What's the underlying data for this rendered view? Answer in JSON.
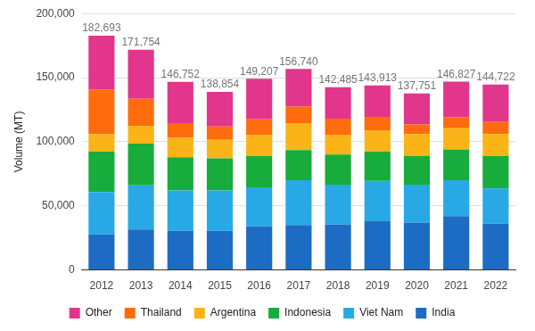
{
  "chart_data": {
    "type": "bar",
    "stacked": true,
    "y_label": "Volume (MT)",
    "categories": [
      "2012",
      "2013",
      "2014",
      "2015",
      "2016",
      "2017",
      "2018",
      "2019",
      "2020",
      "2021",
      "2022"
    ],
    "series": [
      {
        "name": "India",
        "color": "#1c6cc3",
        "values": [
          27800,
          31500,
          30500,
          30500,
          34000,
          35000,
          35500,
          38000,
          37000,
          42000,
          36000
        ]
      },
      {
        "name": "Viet Nam",
        "color": "#28a9e6",
        "values": [
          33000,
          34500,
          31500,
          31500,
          30500,
          35000,
          31000,
          31500,
          29500,
          28000,
          27500
        ]
      },
      {
        "name": "Indonesia",
        "color": "#17ac3c",
        "values": [
          31500,
          32500,
          26000,
          25000,
          24500,
          23500,
          23500,
          23000,
          22500,
          24000,
          25500
        ]
      },
      {
        "name": "Argentina",
        "color": "#fbb417",
        "values": [
          13500,
          14000,
          15000,
          14500,
          16500,
          21000,
          15500,
          16500,
          17000,
          16500,
          17000
        ]
      },
      {
        "name": "Thailand",
        "color": "#fe6c0d",
        "values": [
          35000,
          21000,
          11500,
          10500,
          12000,
          13000,
          12500,
          10500,
          7500,
          8500,
          9500
        ]
      },
      {
        "name": "Other",
        "color": "#e1368b",
        "values": [
          41893,
          38254,
          32252,
          26854,
          31707,
          29240,
          24485,
          24413,
          24251,
          27827,
          29222
        ]
      }
    ],
    "totals": [
      182693,
      171754,
      146752,
      138854,
      149207,
      156740,
      142485,
      143913,
      137751,
      146827,
      144722
    ],
    "total_labels": [
      "182,693",
      "171,754",
      "146,752",
      "138,854",
      "149,207",
      "156,740",
      "142,485",
      "143,913",
      "137,751",
      "146,827",
      "144,722"
    ],
    "ylim": [
      0,
      200000
    ],
    "yticks": [
      {
        "value": 0,
        "label": "0"
      },
      {
        "value": 50000,
        "label": "50,000"
      },
      {
        "value": 100000,
        "label": "100,000"
      },
      {
        "value": 150000,
        "label": "150,000"
      },
      {
        "value": 200000,
        "label": "200,000"
      }
    ],
    "grid": true,
    "legend": "bottom"
  }
}
